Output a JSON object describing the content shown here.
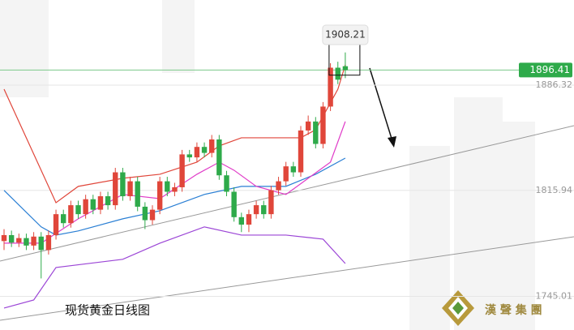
{
  "chart_data": {
    "type": "candlestick",
    "title": "现货黄金日线图",
    "brand": "漢 聲 集 團",
    "ylim": [
      1722.5,
      1943.3
    ],
    "yticks": [
      1886.32,
      1815.94,
      1745.01
    ],
    "last_price": 1896.41,
    "high_annotation": 1908.21,
    "up_color": "#e0463a",
    "down_color": "#2eaa4a",
    "open": [
      1782,
      1786,
      1781,
      1784,
      1779,
      1785,
      1776,
      1786,
      1800,
      1794,
      1806,
      1800,
      1810,
      1803,
      1812,
      1806,
      1828,
      1812,
      1822,
      1805,
      1796,
      1803,
      1822,
      1815,
      1818,
      1840,
      1838,
      1845,
      1841,
      1850,
      1826,
      1815,
      1798,
      1793,
      1800,
      1806,
      1800,
      1816,
      1822,
      1832,
      1828,
      1856,
      1862,
      1847,
      1872,
      1898,
      1899
    ],
    "close": [
      1786,
      1781,
      1784,
      1779,
      1785,
      1776,
      1786,
      1800,
      1794,
      1806,
      1800,
      1810,
      1803,
      1812,
      1806,
      1828,
      1812,
      1822,
      1805,
      1796,
      1803,
      1822,
      1815,
      1818,
      1840,
      1838,
      1845,
      1841,
      1850,
      1826,
      1815,
      1798,
      1793,
      1800,
      1806,
      1800,
      1816,
      1822,
      1832,
      1828,
      1856,
      1862,
      1847,
      1872,
      1898,
      1890,
      1896.41
    ],
    "high": [
      1790,
      1789,
      1787,
      1787,
      1788,
      1788,
      1789,
      1803,
      1803,
      1809,
      1809,
      1813,
      1813,
      1815,
      1815,
      1831,
      1831,
      1825,
      1825,
      1808,
      1806,
      1825,
      1825,
      1821,
      1843,
      1843,
      1848,
      1848,
      1853,
      1853,
      1829,
      1818,
      1801,
      1803,
      1809,
      1809,
      1819,
      1825,
      1835,
      1835,
      1859,
      1866,
      1865,
      1875,
      1901,
      1902,
      1908.21
    ],
    "low": [
      1776,
      1778,
      1778,
      1776,
      1776,
      1757,
      1773,
      1783,
      1791,
      1791,
      1797,
      1797,
      1800,
      1800,
      1803,
      1803,
      1809,
      1809,
      1802,
      1790,
      1793,
      1800,
      1812,
      1812,
      1815,
      1835,
      1835,
      1838,
      1838,
      1823,
      1812,
      1795,
      1788,
      1788,
      1797,
      1797,
      1797,
      1813,
      1819,
      1825,
      1825,
      1853,
      1844,
      1844,
      1869,
      1887,
      1891
    ],
    "series": [
      {
        "name": "upper",
        "color": "#e0463a",
        "x": [
          0,
          7,
          10,
          16,
          21,
          26,
          29,
          32,
          40,
          42,
          45,
          46
        ],
        "values": [
          1883.6,
          1807.7,
          1818.6,
          1824.0,
          1826.7,
          1834.8,
          1845.7,
          1851.1,
          1851.1,
          1856.5,
          1883.6,
          1899.9
        ]
      },
      {
        "name": "middle",
        "color": "#2a7fd4",
        "x": [
          0,
          5,
          7,
          10,
          16,
          21,
          27,
          32,
          38,
          42,
          46
        ],
        "values": [
          1815.9,
          1791.5,
          1786.0,
          1788.8,
          1796.9,
          1802.3,
          1813.2,
          1818.6,
          1818.6,
          1826.7,
          1837.5
        ]
      },
      {
        "name": "lower",
        "color": "#9b45d6",
        "x": [
          0,
          4,
          7,
          16,
          21,
          27,
          32,
          38,
          43,
          46
        ],
        "values": [
          1737.2,
          1742.6,
          1764.3,
          1769.8,
          1780.6,
          1791.5,
          1786.0,
          1786.0,
          1783.3,
          1767.0
        ]
      },
      {
        "name": "ma",
        "color": "#e03cc8",
        "x": [
          0,
          5,
          10,
          16,
          21,
          26,
          29,
          31,
          34,
          38,
          41,
          44,
          46
        ],
        "values": [
          1780.6,
          1780.6,
          1796.9,
          1813.2,
          1810.4,
          1826.7,
          1834.8,
          1829.4,
          1818.6,
          1813.2,
          1824.0,
          1834.8,
          1862.0
        ]
      }
    ]
  }
}
